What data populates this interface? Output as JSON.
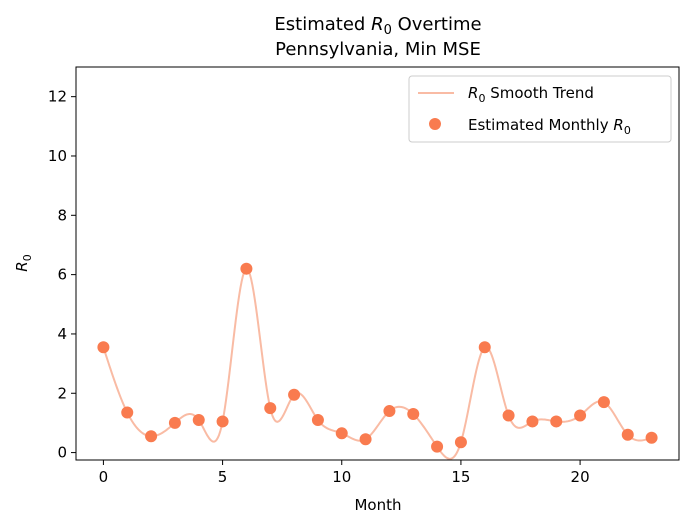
{
  "chart_data": {
    "type": "scatter",
    "title_line1_prefix": "Estimated ",
    "title_line1_symbol": "R",
    "title_line1_subscript": "0",
    "title_line1_suffix": " Overtime",
    "title_line2": "Pennsylvania, Min MSE",
    "xlabel": "Month",
    "ylabel_symbol": "R",
    "ylabel_subscript": "0",
    "xlim": [
      -1.15,
      24.15
    ],
    "ylim": [
      -0.25,
      13.0
    ],
    "xticks": [
      0,
      5,
      10,
      15,
      20
    ],
    "yticks": [
      0,
      2,
      4,
      6,
      8,
      10,
      12
    ],
    "grid": false,
    "legend_position": "top-right",
    "series": [
      {
        "name_symbol": "R",
        "name_subscript": "0",
        "name_suffix": " Smooth Trend",
        "kind": "line",
        "color": "#f9bba4"
      },
      {
        "name_prefix": "Estimated Monthly ",
        "name_symbol": "R",
        "name_subscript": "0",
        "kind": "scatter",
        "color": "#f97b4f"
      }
    ],
    "x": [
      0,
      1,
      2,
      3,
      4,
      5,
      6,
      7,
      8,
      9,
      10,
      11,
      12,
      13,
      14,
      15,
      16,
      17,
      18,
      19,
      20,
      21,
      22,
      23
    ],
    "y": [
      3.55,
      1.35,
      0.55,
      1.0,
      1.1,
      1.05,
      6.2,
      1.5,
      1.95,
      1.1,
      0.65,
      0.45,
      1.4,
      1.3,
      0.2,
      0.35,
      3.55,
      1.25,
      1.05,
      1.05,
      1.25,
      1.7,
      0.6,
      0.5
    ]
  }
}
